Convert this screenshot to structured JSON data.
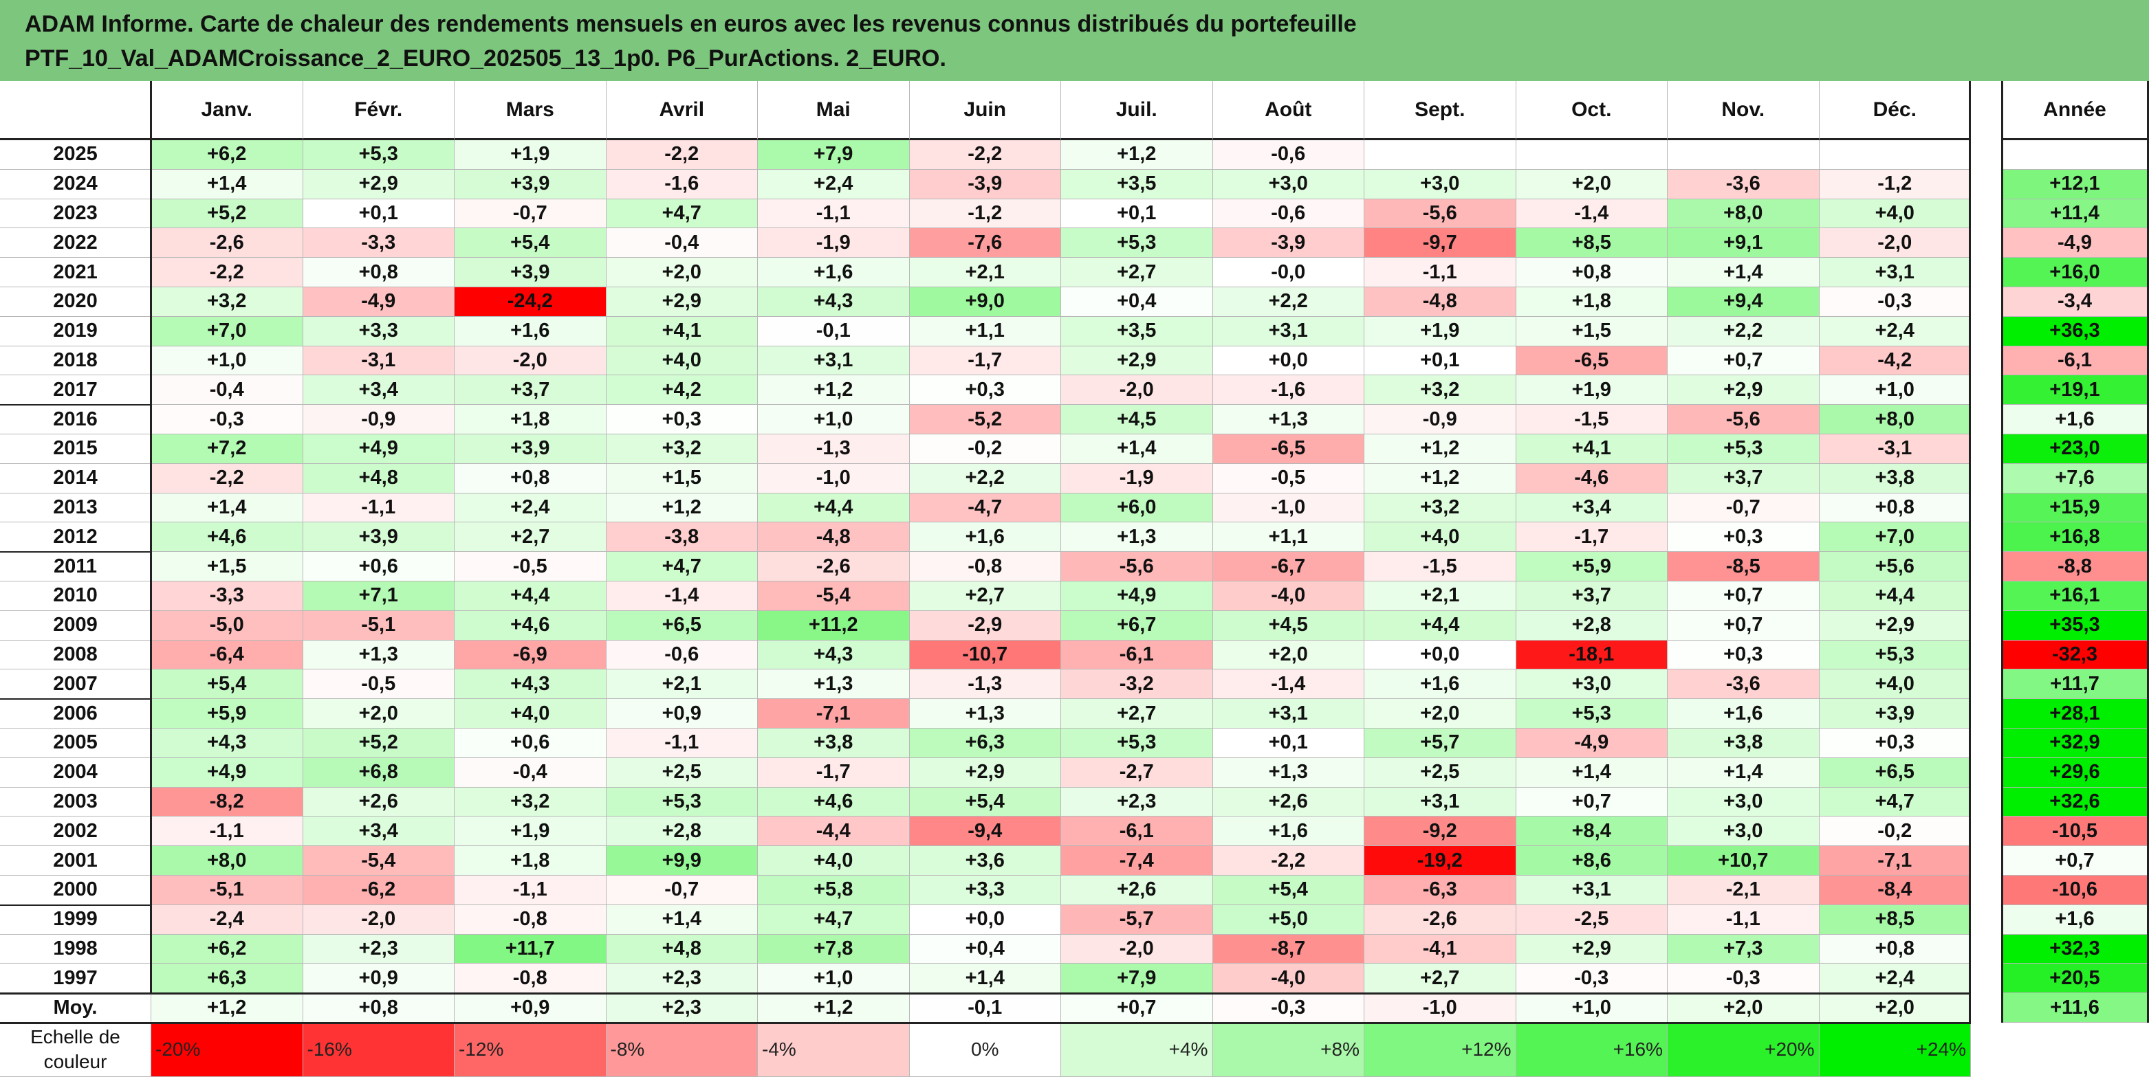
{
  "title": {
    "line1": "ADAM Informe. Carte de chaleur des rendements mensuels en euros avec les revenus connus distribués du portefeuille",
    "line2": "PTF_10_Val_ADAMCroissance_2_EURO_202505_13_1p0. P6_PurActions. 2_EURO."
  },
  "chart_data": {
    "type": "heatmap",
    "columns": [
      "Janv.",
      "Févr.",
      "Mars",
      "Avril",
      "Mai",
      "Juin",
      "Juil.",
      "Août",
      "Sept.",
      "Oct.",
      "Nov.",
      "Déc."
    ],
    "annual_column": "Année",
    "rows": [
      {
        "year": "2025",
        "values": [
          "+6,2",
          "+5,3",
          "+1,9",
          "-2,2",
          "+7,9",
          "-2,2",
          "+1,2",
          "-0,6",
          "",
          "",
          "",
          ""
        ],
        "annual": ""
      },
      {
        "year": "2024",
        "values": [
          "+1,4",
          "+2,9",
          "+3,9",
          "-1,6",
          "+2,4",
          "-3,9",
          "+3,5",
          "+3,0",
          "+3,0",
          "+2,0",
          "-3,6",
          "-1,2"
        ],
        "annual": "+12,1"
      },
      {
        "year": "2023",
        "values": [
          "+5,2",
          "+0,1",
          "-0,7",
          "+4,7",
          "-1,1",
          "-1,2",
          "+0,1",
          "-0,6",
          "-5,6",
          "-1,4",
          "+8,0",
          "+4,0"
        ],
        "annual": "+11,4"
      },
      {
        "year": "2022",
        "values": [
          "-2,6",
          "-3,3",
          "+5,4",
          "-0,4",
          "-1,9",
          "-7,6",
          "+5,3",
          "-3,9",
          "-9,7",
          "+8,5",
          "+9,1",
          "-2,0"
        ],
        "annual": "-4,9"
      },
      {
        "year": "2021",
        "values": [
          "-2,2",
          "+0,8",
          "+3,9",
          "+2,0",
          "+1,6",
          "+2,1",
          "+2,7",
          "-0,0",
          "-1,1",
          "+0,8",
          "+1,4",
          "+3,1"
        ],
        "annual": "+16,0"
      },
      {
        "year": "2020",
        "values": [
          "+3,2",
          "-4,9",
          "-24,2",
          "+2,9",
          "+4,3",
          "+9,0",
          "+0,4",
          "+2,2",
          "-4,8",
          "+1,8",
          "+9,4",
          "-0,3"
        ],
        "annual": "-3,4"
      },
      {
        "year": "2019",
        "values": [
          "+7,0",
          "+3,3",
          "+1,6",
          "+4,1",
          "-0,1",
          "+1,1",
          "+3,5",
          "+3,1",
          "+1,9",
          "+1,5",
          "+2,2",
          "+2,4"
        ],
        "annual": "+36,3"
      },
      {
        "year": "2018",
        "values": [
          "+1,0",
          "-3,1",
          "-2,0",
          "+4,0",
          "+3,1",
          "-1,7",
          "+2,9",
          "+0,0",
          "+0,1",
          "-6,5",
          "+0,7",
          "-4,2"
        ],
        "annual": "-6,1"
      },
      {
        "year": "2017",
        "values": [
          "-0,4",
          "+3,4",
          "+3,7",
          "+4,2",
          "+1,2",
          "+0,3",
          "-2,0",
          "-1,6",
          "+3,2",
          "+1,9",
          "+2,9",
          "+1,0"
        ],
        "annual": "+19,1"
      },
      {
        "year": "2016",
        "values": [
          "-0,3",
          "-0,9",
          "+1,8",
          "+0,3",
          "+1,0",
          "-5,2",
          "+4,5",
          "+1,3",
          "-0,9",
          "-1,5",
          "-5,6",
          "+8,0"
        ],
        "annual": "+1,6"
      },
      {
        "year": "2015",
        "values": [
          "+7,2",
          "+4,9",
          "+3,9",
          "+3,2",
          "-1,3",
          "-0,2",
          "+1,4",
          "-6,5",
          "+1,2",
          "+4,1",
          "+5,3",
          "-3,1"
        ],
        "annual": "+23,0"
      },
      {
        "year": "2014",
        "values": [
          "-2,2",
          "+4,8",
          "+0,8",
          "+1,5",
          "-1,0",
          "+2,2",
          "-1,9",
          "-0,5",
          "+1,2",
          "-4,6",
          "+3,7",
          "+3,8"
        ],
        "annual": "+7,6"
      },
      {
        "year": "2013",
        "values": [
          "+1,4",
          "-1,1",
          "+2,4",
          "+1,2",
          "+4,4",
          "-4,7",
          "+6,0",
          "-1,0",
          "+3,2",
          "+3,4",
          "-0,7",
          "+0,8"
        ],
        "annual": "+15,9"
      },
      {
        "year": "2012",
        "values": [
          "+4,6",
          "+3,9",
          "+2,7",
          "-3,8",
          "-4,8",
          "+1,6",
          "+1,3",
          "+1,1",
          "+4,0",
          "-1,7",
          "+0,3",
          "+7,0"
        ],
        "annual": "+16,8"
      },
      {
        "year": "2011",
        "values": [
          "+1,5",
          "+0,6",
          "-0,5",
          "+4,7",
          "-2,6",
          "-0,8",
          "-5,6",
          "-6,7",
          "-1,5",
          "+5,9",
          "-8,5",
          "+5,6"
        ],
        "annual": "-8,8"
      },
      {
        "year": "2010",
        "values": [
          "-3,3",
          "+7,1",
          "+4,4",
          "-1,4",
          "-5,4",
          "+2,7",
          "+4,9",
          "-4,0",
          "+2,1",
          "+3,7",
          "+0,7",
          "+4,4"
        ],
        "annual": "+16,1"
      },
      {
        "year": "2009",
        "values": [
          "-5,0",
          "-5,1",
          "+4,6",
          "+6,5",
          "+11,2",
          "-2,9",
          "+6,7",
          "+4,5",
          "+4,4",
          "+2,8",
          "+0,7",
          "+2,9"
        ],
        "annual": "+35,3"
      },
      {
        "year": "2008",
        "values": [
          "-6,4",
          "+1,3",
          "-6,9",
          "-0,6",
          "+4,3",
          "-10,7",
          "-6,1",
          "+2,0",
          "+0,0",
          "-18,1",
          "+0,3",
          "+5,3"
        ],
        "annual": "-32,3"
      },
      {
        "year": "2007",
        "values": [
          "+5,4",
          "-0,5",
          "+4,3",
          "+2,1",
          "+1,3",
          "-1,3",
          "-3,2",
          "-1,4",
          "+1,6",
          "+3,0",
          "-3,6",
          "+4,0"
        ],
        "annual": "+11,7"
      },
      {
        "year": "2006",
        "values": [
          "+5,9",
          "+2,0",
          "+4,0",
          "+0,9",
          "-7,1",
          "+1,3",
          "+2,7",
          "+3,1",
          "+2,0",
          "+5,3",
          "+1,6",
          "+3,9"
        ],
        "annual": "+28,1"
      },
      {
        "year": "2005",
        "values": [
          "+4,3",
          "+5,2",
          "+0,6",
          "-1,1",
          "+3,8",
          "+6,3",
          "+5,3",
          "+0,1",
          "+5,7",
          "-4,9",
          "+3,8",
          "+0,3"
        ],
        "annual": "+32,9"
      },
      {
        "year": "2004",
        "values": [
          "+4,9",
          "+6,8",
          "-0,4",
          "+2,5",
          "-1,7",
          "+2,9",
          "-2,7",
          "+1,3",
          "+2,5",
          "+1,4",
          "+1,4",
          "+6,5"
        ],
        "annual": "+29,6"
      },
      {
        "year": "2003",
        "values": [
          "-8,2",
          "+2,6",
          "+3,2",
          "+5,3",
          "+4,6",
          "+5,4",
          "+2,3",
          "+2,6",
          "+3,1",
          "+0,7",
          "+3,0",
          "+4,7"
        ],
        "annual": "+32,6"
      },
      {
        "year": "2002",
        "values": [
          "-1,1",
          "+3,4",
          "+1,9",
          "+2,8",
          "-4,4",
          "-9,4",
          "-6,1",
          "+1,6",
          "-9,2",
          "+8,4",
          "+3,0",
          "-0,2"
        ],
        "annual": "-10,5"
      },
      {
        "year": "2001",
        "values": [
          "+8,0",
          "-5,4",
          "+1,8",
          "+9,9",
          "+4,0",
          "+3,6",
          "-7,4",
          "-2,2",
          "-19,2",
          "+8,6",
          "+10,7",
          "-7,1"
        ],
        "annual": "+0,7"
      },
      {
        "year": "2000",
        "values": [
          "-5,1",
          "-6,2",
          "-1,1",
          "-0,7",
          "+5,8",
          "+3,3",
          "+2,6",
          "+5,4",
          "-6,3",
          "+3,1",
          "-2,1",
          "-8,4"
        ],
        "annual": "-10,6"
      },
      {
        "year": "1999",
        "values": [
          "-2,4",
          "-2,0",
          "-0,8",
          "+1,4",
          "+4,7",
          "+0,0",
          "-5,7",
          "+5,0",
          "-2,6",
          "-2,5",
          "-1,1",
          "+8,5"
        ],
        "annual": "+1,6"
      },
      {
        "year": "1998",
        "values": [
          "+6,2",
          "+2,3",
          "+11,7",
          "+4,8",
          "+7,8",
          "+0,4",
          "-2,0",
          "-8,7",
          "-4,1",
          "+2,9",
          "+7,3",
          "+0,8"
        ],
        "annual": "+32,3"
      },
      {
        "year": "1997",
        "values": [
          "+6,3",
          "+0,9",
          "-0,8",
          "+2,3",
          "+1,0",
          "+1,4",
          "+7,9",
          "-4,0",
          "+2,7",
          "-0,3",
          "-0,3",
          "+2,4"
        ],
        "annual": "+20,5"
      }
    ],
    "average": {
      "label": "Moy.",
      "values": [
        "+1,2",
        "+0,8",
        "+0,9",
        "+2,3",
        "+1,2",
        "-0,1",
        "+0,7",
        "-0,3",
        "-1,0",
        "+1,0",
        "+2,0",
        "+2,0"
      ],
      "annual": "+11,6"
    },
    "color_scale": {
      "label": "Echelle de couleur",
      "steps": [
        "-20%",
        "-16%",
        "-12%",
        "-8%",
        "-4%",
        "0%",
        "+4%",
        "+8%",
        "+12%",
        "+16%",
        "+20%",
        "+24%"
      ],
      "step_values": [
        -20,
        -16,
        -12,
        -8,
        -4,
        0,
        4,
        8,
        12,
        16,
        20,
        24
      ],
      "negative_color": "#ff0000",
      "neutral_color": "#ffffff",
      "positive_color": "#00ee00"
    }
  },
  "colors": {
    "title_background": "#7dc67d",
    "border": "#222222",
    "gridline": "#b8b8b8"
  }
}
